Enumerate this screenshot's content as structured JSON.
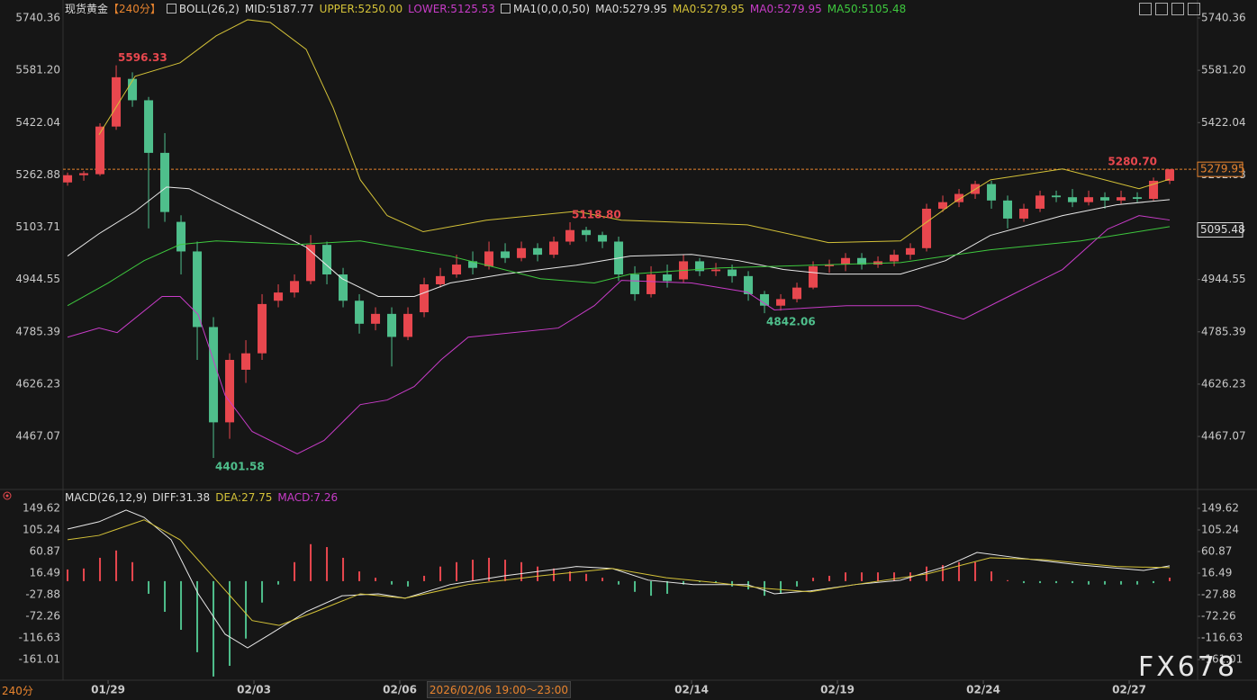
{
  "chart_data": {
    "type": "candlestick",
    "title": "现货黄金",
    "period": "【240分】",
    "indicator_labels": [
      {
        "text": "BOLL(26,2)",
        "color": "#dddddd"
      },
      {
        "text": "MID:5187.77",
        "color": "#dddddd"
      },
      {
        "text": "UPPER:5250.00",
        "color": "#d4c238"
      },
      {
        "text": "LOWER:5125.53",
        "color": "#c83cc8"
      },
      {
        "text": "MA1(0,0,0,50)",
        "color": "#dddddd"
      },
      {
        "text": "MA0:5279.95",
        "color": "#dddddd"
      },
      {
        "text": "MA0:5279.95",
        "color": "#d4c238"
      },
      {
        "text": "MA0:5279.95",
        "color": "#c83cc8"
      },
      {
        "text": "MA50:5105.48",
        "color": "#3ec83e"
      }
    ],
    "up_color": "#e8474e",
    "down_color": "#4fbf8c",
    "xlim": [
      -0.28,
      69.72
    ],
    "xticks": [
      {
        "value": 2.5,
        "label": "01/29"
      },
      {
        "value": 11.5,
        "label": "02/03"
      },
      {
        "value": 20.5,
        "label": "02/06"
      },
      {
        "value": 38.5,
        "label": "02/14"
      },
      {
        "value": 47.5,
        "label": "02/19"
      },
      {
        "value": 56.5,
        "label": "02/24"
      },
      {
        "value": 65.5,
        "label": "02/27"
      }
    ],
    "ylim": [
      4316.7,
      5789.6
    ],
    "yticks": [
      5740.36,
      {
        "value": 5581.2,
        "label": "5581.20"
      },
      5422.04,
      5262.88,
      5103.71,
      4944.55,
      4785.39,
      4626.23,
      4467.07
    ],
    "candles": {
      "open": [
        5240,
        5262,
        5265,
        5410,
        5555,
        5490,
        5330,
        5120,
        5030,
        4800,
        4510,
        4670,
        4720,
        4880,
        4905,
        4940,
        5050,
        4960,
        4880,
        4810,
        4840,
        4770,
        4845,
        4930,
        4960,
        5000,
        4985,
        5030,
        5010,
        5040,
        5020,
        5060,
        5095,
        5080,
        5060,
        4960,
        4900,
        4960,
        4945,
        5000,
        4970,
        4975,
        4955,
        4900,
        4865,
        4885,
        4920,
        4985,
        4990,
        5010,
        4990,
        5000,
        5020,
        5040,
        5160,
        5180,
        5205,
        5235,
        5185,
        5130,
        5160,
        5200,
        5195,
        5180,
        5195,
        5185,
        5195,
        5190,
        5245
      ],
      "high": [
        5270,
        5275,
        5420,
        5596.33,
        5575,
        5500,
        5390,
        5140,
        5060,
        4830,
        4720,
        4760,
        4900,
        4930,
        4960,
        5080,
        5060,
        4980,
        4900,
        4860,
        4860,
        4860,
        4950,
        4980,
        5020,
        5030,
        5060,
        5055,
        5060,
        5055,
        5075,
        5118.8,
        5105,
        5090,
        5075,
        4985,
        4985,
        4990,
        5020,
        5010,
        4995,
        4990,
        4970,
        4910,
        4900,
        4935,
        5000,
        5005,
        5025,
        5025,
        5015,
        5035,
        5055,
        5175,
        5200,
        5220,
        5245,
        5245,
        5200,
        5175,
        5215,
        5215,
        5220,
        5215,
        5210,
        5215,
        5210,
        5255,
        5280.7
      ],
      "low": [
        5230,
        5245,
        5260,
        5400,
        5470,
        5100,
        5120,
        4960,
        4700,
        4401.58,
        4460,
        4630,
        4700,
        4860,
        4890,
        4930,
        4930,
        4860,
        4780,
        4790,
        4680,
        4760,
        4830,
        4920,
        4950,
        4960,
        4975,
        4995,
        5000,
        5000,
        5010,
        5050,
        5060,
        5040,
        4940,
        4880,
        4890,
        4920,
        4935,
        4955,
        4955,
        4935,
        4880,
        4842.06,
        4850,
        4875,
        4915,
        4965,
        4970,
        4975,
        4980,
        4985,
        5005,
        5030,
        5150,
        5165,
        5190,
        5160,
        5100,
        5120,
        5150,
        5180,
        5165,
        5170,
        5160,
        5175,
        5180,
        5185,
        5235
      ],
      "close": [
        5262,
        5268,
        5410,
        5560,
        5490,
        5330,
        5150,
        5030,
        4800,
        4510,
        4700,
        4720,
        4870,
        4905,
        4940,
        5050,
        4960,
        4880,
        4810,
        4840,
        4770,
        4840,
        4930,
        4955,
        4990,
        4980,
        5030,
        5010,
        5040,
        5020,
        5060,
        5095,
        5080,
        5060,
        4960,
        4900,
        4960,
        4940,
        5000,
        4970,
        4975,
        4955,
        4900,
        4865,
        4885,
        4920,
        4985,
        4990,
        5010,
        4990,
        5000,
        5020,
        5040,
        5160,
        5180,
        5205,
        5235,
        5185,
        5130,
        5160,
        5200,
        5195,
        5180,
        5195,
        5185,
        5195,
        5190,
        5245,
        5279.95
      ]
    },
    "overlays": [
      {
        "color": "#d4c238",
        "x": [
          1.94,
          4.17,
          6.94,
          9.17,
          11.11,
          12.5,
          14.72,
          16.39,
          18.06,
          19.72,
          21.94,
          25.83,
          31.39,
          34.17,
          41.94,
          46.94,
          51.39,
          54.72,
          56.94,
          61.39,
          66.11,
          68
        ],
        "values": [
          5385,
          5563,
          5604,
          5686,
          5735,
          5727,
          5645,
          5467,
          5248,
          5139,
          5090,
          5125,
          5152,
          5125,
          5111,
          5057,
          5062,
          5180,
          5248,
          5281,
          5221,
          5250
        ]
      },
      {
        "color": "#e8e8e8",
        "x": [
          0,
          1.94,
          4.17,
          6.11,
          7.5,
          9.72,
          12.5,
          14.72,
          16.94,
          19.17,
          21.39,
          23.61,
          26.94,
          31.39,
          34.72,
          38.5,
          41.39,
          44.17,
          46.94,
          51.39,
          54.17,
          56.94,
          61.39,
          64.72,
          68
        ],
        "values": [
          5016,
          5084,
          5152,
          5226,
          5221,
          5166,
          5098,
          5043,
          4947,
          4893,
          4893,
          4934,
          4961,
          4988,
          5016,
          5021,
          5002,
          4975,
          4961,
          4961,
          5002,
          5079,
          5139,
          5172,
          5187.77
        ]
      },
      {
        "color": "#c83cc8",
        "x": [
          0,
          1.94,
          3.06,
          5.83,
          6.94,
          8.06,
          9.72,
          11.39,
          14.17,
          15.83,
          18.06,
          19.72,
          21.39,
          23.06,
          24.72,
          30.28,
          32.5,
          34.17,
          38.5,
          41.94,
          43.61,
          48.06,
          52.5,
          55.28,
          58.06,
          61.39,
          64.17,
          66.11,
          68
        ],
        "values": [
          4769,
          4797,
          4783,
          4893,
          4893,
          4838,
          4592,
          4482,
          4414,
          4455,
          4564,
          4578,
          4619,
          4701,
          4769,
          4797,
          4865,
          4942,
          4934,
          4906,
          4852,
          4865,
          4865,
          4824,
          4893,
          4975,
          5098,
          5139,
          5125.53
        ]
      },
      {
        "color": "#3ec83e",
        "x": [
          0,
          2.5,
          4.72,
          6.94,
          9.17,
          14.17,
          18.06,
          23.61,
          29.17,
          32.5,
          34.72,
          40.28,
          45.83,
          51.39,
          56.94,
          62.5,
          68
        ],
        "values": [
          4865,
          4934,
          5002,
          5051,
          5062,
          5051,
          5062,
          5016,
          4947,
          4934,
          4961,
          4980,
          4988,
          4996,
          5035,
          5062,
          5105.48
        ]
      }
    ],
    "annotations": [
      {
        "index": 3,
        "value": 5596.33
      },
      {
        "index": 9,
        "value": 4401.58
      },
      {
        "index": 31,
        "value": 5118.8,
        "label": "5118.80"
      },
      {
        "index": 43,
        "value": 4842.06
      },
      {
        "index": 68,
        "value": 5280.7,
        "label": "5280.70"
      }
    ],
    "price_line": {
      "value": 5279.95,
      "color": "#e8842e"
    },
    "price_tags": [
      {
        "value": 5279.95,
        "color": "#e8842e"
      },
      {
        "value": 5095.48,
        "color": "#dddddd"
      }
    ],
    "macd": {
      "labels": [
        {
          "text": "MACD(26,12,9)",
          "color": "#dddddd"
        },
        {
          "text": "DIFF:31.38",
          "color": "#dddddd"
        },
        {
          "text": "DEA:27.75",
          "color": "#d4c238"
        },
        {
          "text": "MACD:7.26",
          "color": "#c83cc8"
        }
      ],
      "ylim": [
        -201.7,
        181
      ],
      "yticks": [
        149.62,
        105.24,
        60.87,
        16.49,
        -27.88,
        -72.26,
        -116.63,
        -161.01
      ],
      "histogram": [
        24,
        26,
        48,
        63,
        39,
        -26,
        -63,
        -100,
        -146,
        -196,
        -174,
        -118,
        -44,
        -7,
        39,
        76,
        70,
        48,
        20,
        7,
        -7,
        -11,
        11,
        30,
        39,
        44,
        48,
        44,
        39,
        30,
        26,
        20,
        15,
        7,
        -7,
        -22,
        -30,
        -26,
        -7,
        -2,
        -4,
        -11,
        -17,
        -30,
        -26,
        -11,
        7,
        11,
        18,
        18,
        18,
        18,
        18,
        30,
        33,
        39,
        39,
        20,
        2,
        -4,
        -4,
        -4,
        -4,
        -7,
        -7,
        -7,
        -7,
        -4,
        7.26
      ],
      "lines": [
        {
          "color": "#e8e8e8",
          "x": [
            0,
            1.94,
            3.61,
            4.72,
            6.39,
            8.06,
            9.72,
            11.11,
            12.5,
            14.72,
            16.94,
            19.17,
            20.83,
            23.61,
            26.94,
            31.39,
            33.61,
            35.83,
            38.61,
            41.94,
            43.61,
            45.83,
            48.61,
            51.39,
            54.17,
            56.11,
            58.61,
            62.5,
            66.39,
            68
          ],
          "values": [
            107,
            122,
            146,
            131,
            85,
            -26,
            -109,
            -137,
            -109,
            -63,
            -30,
            -26,
            -35,
            -7,
            11,
            30,
            26,
            2,
            -7,
            -7,
            -26,
            -20,
            -7,
            2,
            30,
            59,
            48,
            33,
            22,
            31.38
          ]
        },
        {
          "color": "#d4c238",
          "x": [
            0,
            1.94,
            4.72,
            6.94,
            9.17,
            11.39,
            13.06,
            15.28,
            18.06,
            20.83,
            24.72,
            29.17,
            33.61,
            36.94,
            40.28,
            43.06,
            45.83,
            48.61,
            53.06,
            56.94,
            60.28,
            64.72,
            68
          ],
          "values": [
            85,
            94,
            126,
            85,
            2,
            -81,
            -91,
            -63,
            -26,
            -35,
            -7,
            11,
            26,
            7,
            -4,
            -15,
            -22,
            -7,
            15,
            48,
            44,
            30,
            27.75
          ]
        }
      ]
    },
    "crosshair_label": "2026/02/06 19:00～23:00 五",
    "period_badge": "240分",
    "watermark": "FX678"
  }
}
